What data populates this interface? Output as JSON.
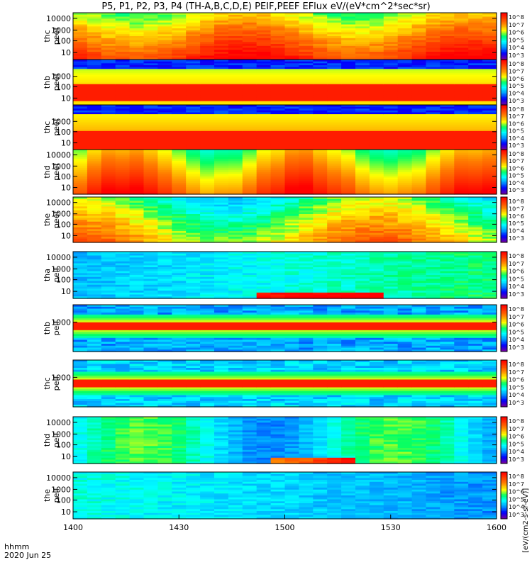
{
  "title": "P5, P1, P2, P3, P4 (TH-A,B,C,D,E) PEIF,PEEF EFlux eV/(eV*cm^2*sec*sr)",
  "time_axis": {
    "label_line1": "hhmm",
    "label_line2": "2020 Jun 25",
    "ticks": [
      "1400",
      "1430",
      "1500",
      "1530",
      "1600"
    ],
    "range_minutes": [
      0,
      120
    ]
  },
  "colorbar": {
    "unit_label": "[eV/(cm2-s-sr-eV)]",
    "ticks": [
      "10^8",
      "10^7",
      "10^6",
      "10^5",
      "10^4",
      "10^3"
    ],
    "colors": [
      "#ff0000",
      "#ff7a00",
      "#ffff00",
      "#00ff66",
      "#00ffff",
      "#0096ff",
      "#0000ff",
      "#6a00a8"
    ]
  },
  "chart_data": [
    {
      "type": "heatmap",
      "panel": "thc-peef-top",
      "ylabel_line1": "thc",
      "ylabel_line2": "peef",
      "yticks": [
        "10000",
        "1000",
        "100",
        "10"
      ],
      "yscale": "log",
      "bands": [
        0.62,
        0.6,
        0.58,
        0.55,
        0.52,
        0.5,
        0.48,
        0.45,
        0.5,
        0.55,
        0.6,
        0.62,
        0.6,
        0.55,
        0.52,
        0.5,
        0.5,
        0.52,
        0.55,
        0.6,
        0.65,
        0.6,
        0.55,
        0.52,
        0.5,
        0.55,
        0.6,
        0.65,
        0.7,
        0.72
      ]
    },
    {
      "type": "heatmap",
      "panel": "thb-peef",
      "ylabel_line1": "thb",
      "ylabel_line2": "peef",
      "yticks": [
        "1000",
        "100",
        "10"
      ],
      "yscale": "log"
    },
    {
      "type": "heatmap",
      "panel": "thc-peef",
      "ylabel_line1": "thc",
      "ylabel_line2": "peef",
      "yticks": [
        "1000",
        "100",
        "10"
      ],
      "yscale": "log"
    },
    {
      "type": "heatmap",
      "panel": "thd-peef",
      "ylabel_line1": "thd",
      "ylabel_line2": "peef",
      "yticks": [
        "10000",
        "1000",
        "100",
        "10"
      ],
      "yscale": "log"
    },
    {
      "type": "heatmap",
      "panel": "the-peef",
      "ylabel_line1": "the",
      "ylabel_line2": "peef",
      "yticks": [
        "10000",
        "1000",
        "100",
        "10"
      ],
      "yscale": "log"
    },
    {
      "type": "heatmap",
      "panel": "tha-peif",
      "ylabel_line1": "tha",
      "ylabel_line2": "peif",
      "yticks": [
        "10000",
        "1000",
        "100",
        "10"
      ],
      "yscale": "log"
    },
    {
      "type": "heatmap",
      "panel": "thb-peif",
      "ylabel_line1": "thb",
      "ylabel_line2": "peif",
      "yticks": [
        "1000"
      ],
      "yscale": "log"
    },
    {
      "type": "heatmap",
      "panel": "thc-peif",
      "ylabel_line1": "thc",
      "ylabel_line2": "peif",
      "yticks": [
        "1000"
      ],
      "yscale": "log"
    },
    {
      "type": "heatmap",
      "panel": "thd-peif",
      "ylabel_line1": "thd",
      "ylabel_line2": "peif",
      "yticks": [
        "10000",
        "1000",
        "100",
        "10"
      ],
      "yscale": "log"
    },
    {
      "type": "heatmap",
      "panel": "the-peif",
      "ylabel_line1": "the",
      "ylabel_line2": "peif",
      "yticks": [
        "10000",
        "1000",
        "100",
        "10"
      ],
      "yscale": "log"
    }
  ]
}
